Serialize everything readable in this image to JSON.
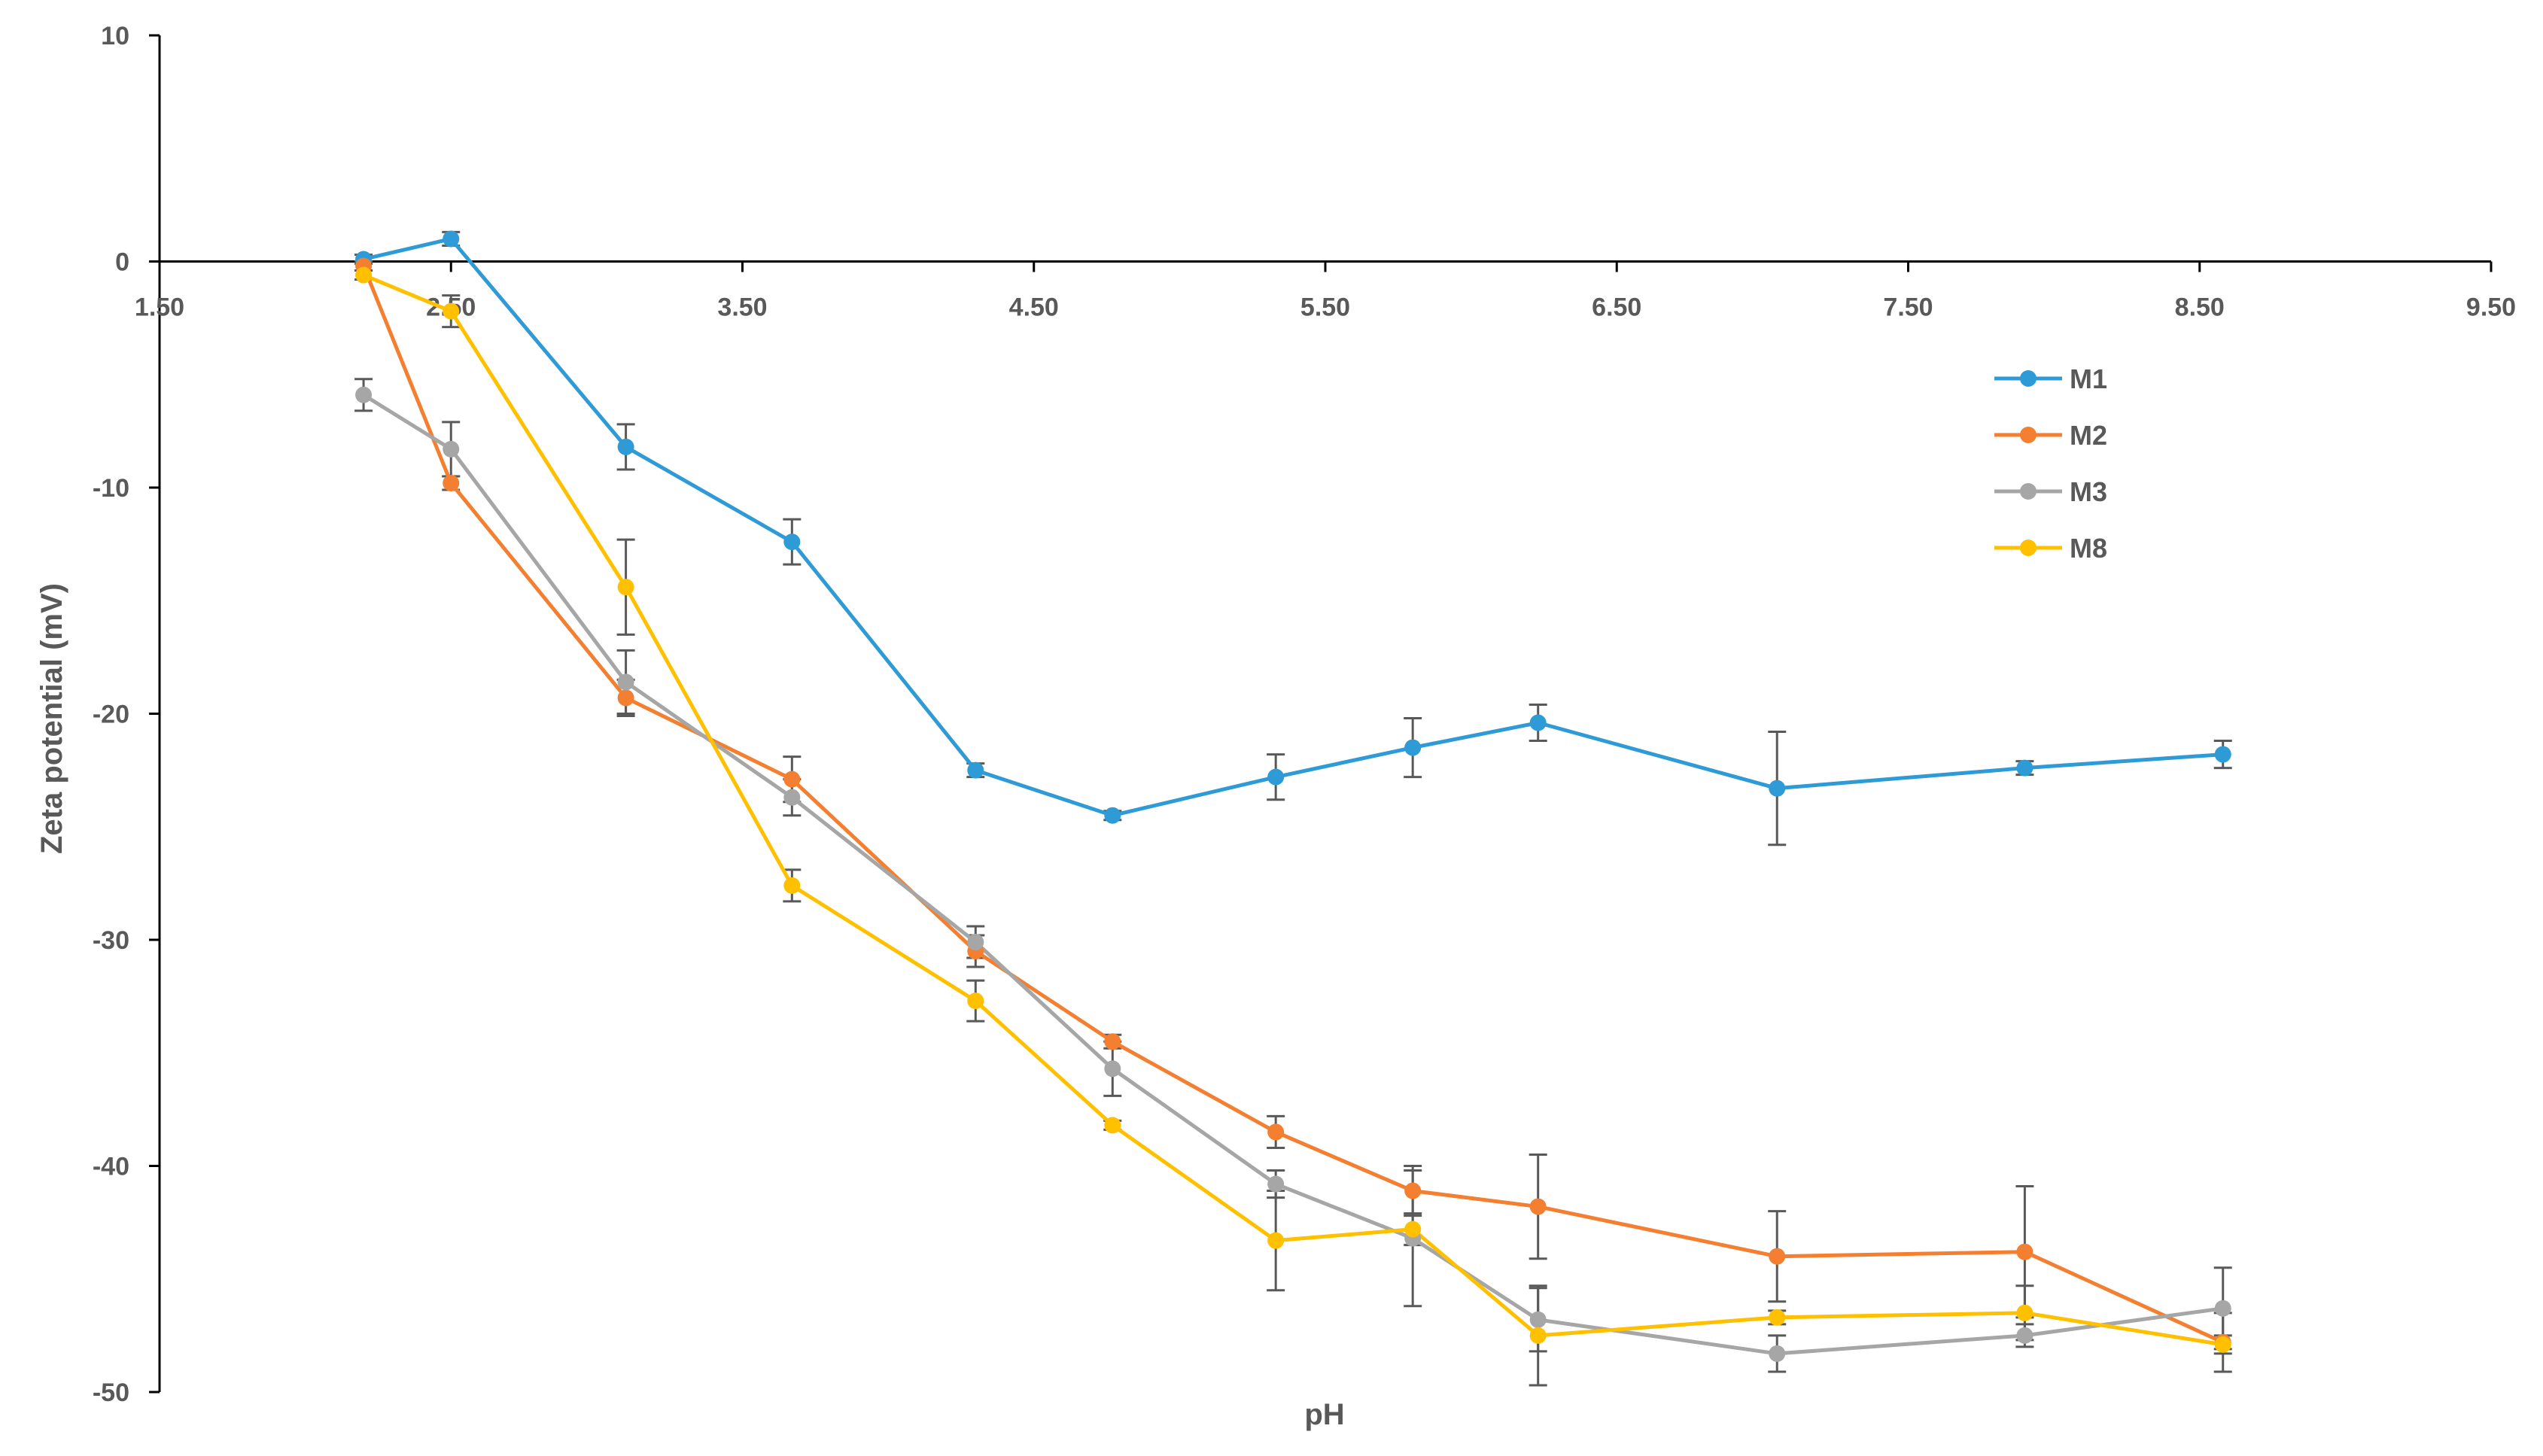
{
  "chart_data": {
    "type": "line",
    "title": "",
    "xlabel": "pH",
    "ylabel": "Zeta potential (mV)",
    "xlim": [
      1.5,
      9.5
    ],
    "ylim": [
      -50,
      10
    ],
    "x_ticks": [
      "1.50",
      "2.50",
      "3.50",
      "4.50",
      "5.50",
      "6.50",
      "7.50",
      "8.50",
      "9.50"
    ],
    "y_ticks": [
      "10",
      "0",
      "-10",
      "-20",
      "-30",
      "-40",
      "-50"
    ],
    "legend_position": "right",
    "grid": false,
    "series": [
      {
        "name": "M1",
        "color": "#2E9BD6",
        "x": [
          2.2,
          2.5,
          3.1,
          3.67,
          4.3,
          4.77,
          5.33,
          5.8,
          6.23,
          7.05,
          7.9,
          8.58
        ],
        "y": [
          0.1,
          1.0,
          -8.2,
          -12.4,
          -22.5,
          -24.5,
          -22.8,
          -21.5,
          -20.4,
          -23.3,
          -22.4,
          -21.8
        ],
        "err": [
          0.2,
          0.3,
          1.0,
          1.0,
          0.3,
          0.2,
          1.0,
          1.3,
          0.8,
          2.5,
          0.3,
          0.6
        ]
      },
      {
        "name": "M2",
        "color": "#F47F30",
        "x": [
          2.2,
          2.5,
          3.1,
          3.67,
          4.3,
          4.77,
          5.33,
          5.8,
          6.23,
          7.05,
          7.9,
          8.58
        ],
        "y": [
          -0.2,
          -9.8,
          -19.3,
          -22.9,
          -30.5,
          -34.5,
          -38.5,
          -41.1,
          -41.8,
          -44.0,
          -43.8,
          -47.8
        ],
        "err": [
          0.2,
          0.3,
          0.8,
          1.0,
          0.7,
          0.3,
          0.7,
          1.1,
          2.3,
          2.0,
          2.9,
          1.3
        ]
      },
      {
        "name": "M3",
        "color": "#A6A6A6",
        "x": [
          2.2,
          2.5,
          3.1,
          3.67,
          4.3,
          4.77,
          5.33,
          5.8,
          6.23,
          7.05,
          7.9,
          8.58
        ],
        "y": [
          -5.9,
          -8.3,
          -18.6,
          -23.7,
          -30.1,
          -35.7,
          -40.8,
          -43.2,
          -46.8,
          -48.3,
          -47.5,
          -46.3
        ],
        "err": [
          0.7,
          1.2,
          1.4,
          0.8,
          0.7,
          1.2,
          0.6,
          3.0,
          1.4,
          0.8,
          0.5,
          1.8
        ]
      },
      {
        "name": "M8",
        "color": "#FFC000",
        "x": [
          2.2,
          2.5,
          3.1,
          3.67,
          4.3,
          4.77,
          5.33,
          5.8,
          6.23,
          7.05,
          7.9,
          8.58
        ],
        "y": [
          -0.6,
          -2.2,
          -14.4,
          -27.6,
          -32.7,
          -38.2,
          -43.3,
          -42.8,
          -47.5,
          -46.7,
          -46.5,
          -47.9
        ],
        "err": [
          0.2,
          0.7,
          2.1,
          0.7,
          0.9,
          0.2,
          2.2,
          0.7,
          2.2,
          0.3,
          1.2,
          0.4
        ]
      }
    ]
  }
}
